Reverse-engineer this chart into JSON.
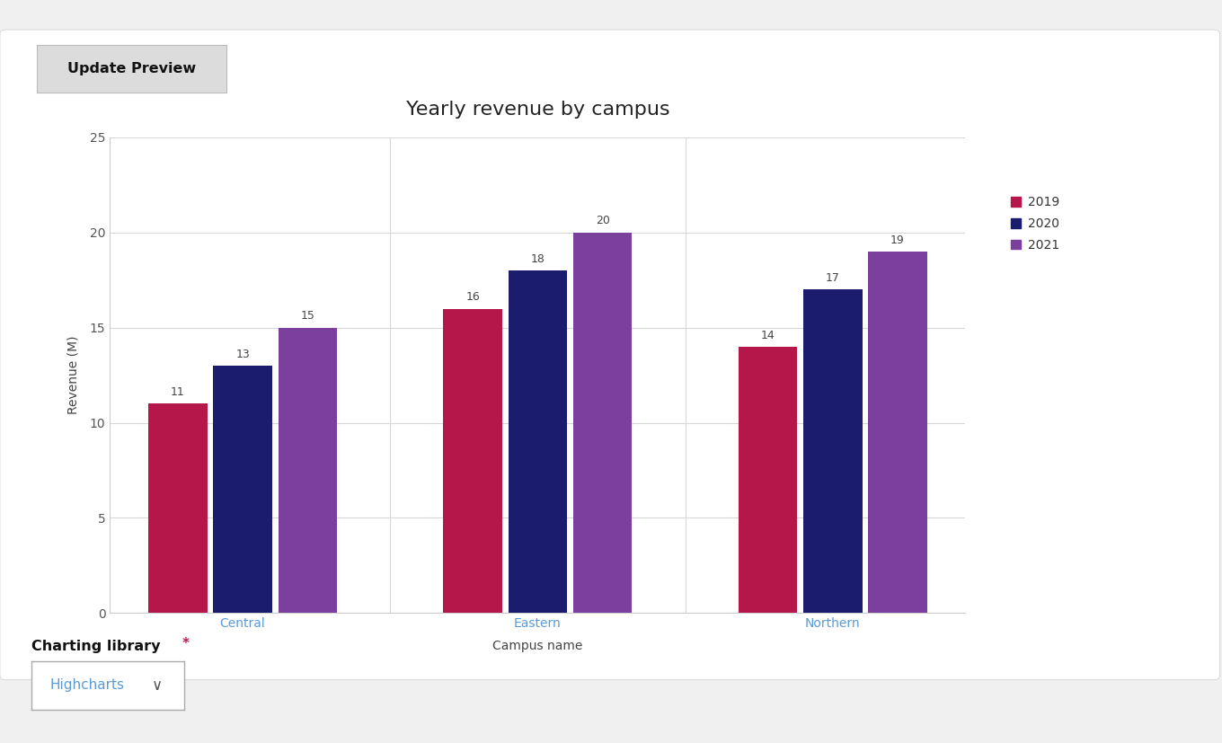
{
  "title": "Yearly revenue by campus",
  "xlabel": "Campus name",
  "ylabel": "Revenue (M)",
  "categories": [
    "Central",
    "Eastern",
    "Northern"
  ],
  "series": [
    {
      "name": "2019",
      "color": "#b5174b",
      "values": [
        11,
        16,
        14
      ]
    },
    {
      "name": "2020",
      "color": "#1c1c6e",
      "values": [
        13,
        18,
        17
      ]
    },
    {
      "name": "2021",
      "color": "#7b3f9e",
      "values": [
        15,
        20,
        19
      ]
    }
  ],
  "ylim": [
    0,
    25
  ],
  "yticks": [
    0,
    5,
    10,
    15,
    20,
    25
  ],
  "background_color": "#f0f0f0",
  "page_color": "#ffffff",
  "plot_bg_color": "#ffffff",
  "grid_color": "#d8d8d8",
  "title_fontsize": 16,
  "axis_label_fontsize": 10,
  "tick_fontsize": 10,
  "legend_fontsize": 10,
  "bar_label_fontsize": 9,
  "category_label_color": "#5b9bd5",
  "value_label_color": "#444444",
  "button_label": "Update Preview",
  "charting_library_label": "Charting library",
  "charting_library_asterisk": "*",
  "charting_library_value": "Highcharts",
  "dropdown_text_color": "#5b9bd5"
}
